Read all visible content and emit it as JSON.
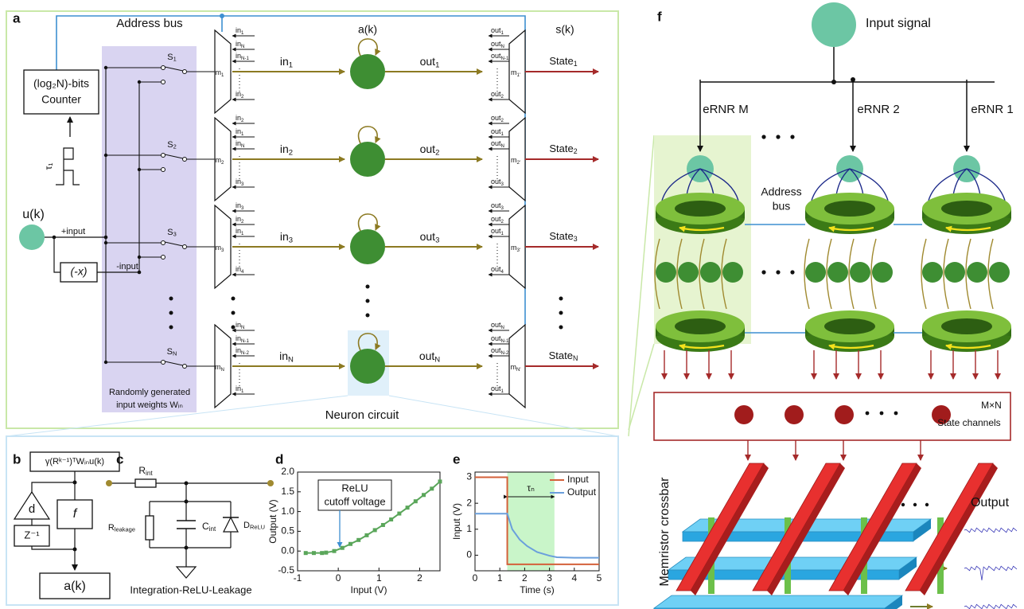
{
  "panel_a": {
    "label": "a",
    "address_bus": "Address bus",
    "counter": [
      "(log₂N)-bits",
      "Counter"
    ],
    "clock": "τ₁",
    "input": "u(k)",
    "plus_input": "+input",
    "minus_input": "-input",
    "negate": "(-x)",
    "weights": [
      "Randomly generated",
      "input weights Wᵢₙ"
    ],
    "neuron_state": "a(k)",
    "state_output": "s(k)",
    "neuron_circuit": "Neuron circuit",
    "rows": [
      {
        "switch": "S1",
        "mux": "m1",
        "mux_inputs": [
          "in1",
          "inN",
          "inN-1",
          "in2"
        ],
        "in": "in1",
        "out": "out1",
        "demux": "m1'",
        "demux_outputs": [
          "out1",
          "outN",
          "outN-1",
          "out2"
        ],
        "state": "State1"
      },
      {
        "switch": "S2",
        "mux": "m2",
        "mux_inputs": [
          "in2",
          "in1",
          "inN",
          "in3"
        ],
        "in": "in2",
        "out": "out2",
        "demux": "m2'",
        "demux_outputs": [
          "out2",
          "out1",
          "outN",
          "out3"
        ],
        "state": "State2"
      },
      {
        "switch": "S3",
        "mux": "m3",
        "mux_inputs": [
          "in3",
          "in2",
          "in1",
          "in4"
        ],
        "in": "in3",
        "out": "out3",
        "demux": "m3'",
        "demux_outputs": [
          "out3",
          "out2",
          "out1",
          "out4"
        ],
        "state": "State3"
      },
      {
        "switch": "SN",
        "mux": "mN",
        "mux_inputs": [
          "inN",
          "inN-1",
          "inN-2",
          "in1"
        ],
        "in": "inN",
        "out": "outN",
        "demux": "mN'",
        "demux_outputs": [
          "outN",
          "outN-1",
          "outN-2",
          "out1"
        ],
        "state": "StateN"
      }
    ]
  },
  "panel_b": {
    "label": "b",
    "expression": "γ(Rᵏ⁻¹)ᵀWᵢₙu(k)",
    "delay": "d",
    "function": "f",
    "z": "Z⁻¹",
    "output": "a(k)"
  },
  "panel_c": {
    "label": "c",
    "r_int": "Rint",
    "r_leak": "Rleakage",
    "c_int": "Cint",
    "d_relu": "DReLU",
    "caption": "Integration-ReLU-Leakage"
  },
  "chart_data": [
    {
      "type": "line",
      "label": "d",
      "x_label": "Input (V)",
      "y_label": "Output (V)",
      "x": [
        -0.8,
        -0.6,
        -0.4,
        -0.3,
        -0.1,
        0.1,
        0.3,
        0.5,
        0.7,
        0.9,
        1.1,
        1.3,
        1.5,
        1.7,
        1.9,
        2.1,
        2.3,
        2.5
      ],
      "values": [
        -0.05,
        -0.05,
        -0.05,
        -0.04,
        0.0,
        0.08,
        0.18,
        0.28,
        0.4,
        0.53,
        0.66,
        0.8,
        0.95,
        1.1,
        1.26,
        1.42,
        1.58,
        1.76
      ],
      "color": "#5aa65a",
      "marker": "square",
      "xlim": [
        -1,
        2.5
      ],
      "ylim": [
        -0.5,
        2.0
      ],
      "xticks": [
        -1,
        0,
        1,
        2
      ],
      "yticks": [
        -0.5,
        {
          "value": 0,
          "label": "0.0"
        },
        0.5,
        {
          "value": 1,
          "label": "1.0"
        },
        1.5,
        {
          "value": 2,
          "label": "2.0"
        }
      ],
      "annotation": [
        "ReLU",
        "cutoff voltage"
      ]
    },
    {
      "type": "line",
      "label": "e",
      "x_label": "Time (s)",
      "y_label": "Input (V)",
      "series": [
        {
          "name": "Input",
          "color": "#d4603a",
          "x": [
            0,
            1.3,
            1.3,
            5
          ],
          "values": [
            3,
            3,
            -0.35,
            -0.35
          ]
        },
        {
          "name": "Output",
          "color": "#6a9fdc",
          "x": [
            0,
            1.3,
            1.5,
            1.8,
            2.1,
            2.5,
            3.0,
            3.3,
            4,
            5
          ],
          "values": [
            1.6,
            1.6,
            1.0,
            0.6,
            0.35,
            0.12,
            -0.02,
            -0.08,
            -0.1,
            -0.1
          ]
        }
      ],
      "xlim": [
        0,
        5
      ],
      "ylim": [
        -0.6,
        3.2
      ],
      "xticks": [
        0,
        1,
        2,
        3,
        4,
        5
      ],
      "yticks": [
        0,
        1,
        2,
        3
      ],
      "highlight_x": [
        1.3,
        3.2
      ],
      "annotation": "τₙ",
      "legend": "upper right"
    }
  ],
  "panel_f": {
    "label": "f",
    "input_signal": "Input signal",
    "reservoirs": [
      "eRNR M",
      "eRNR 2",
      "eRNR 1"
    ],
    "address_bus": [
      "Address",
      "bus"
    ],
    "channels": [
      "M×N",
      "State channels"
    ],
    "crossbar": "Memristor crossbar",
    "output": "Output"
  }
}
